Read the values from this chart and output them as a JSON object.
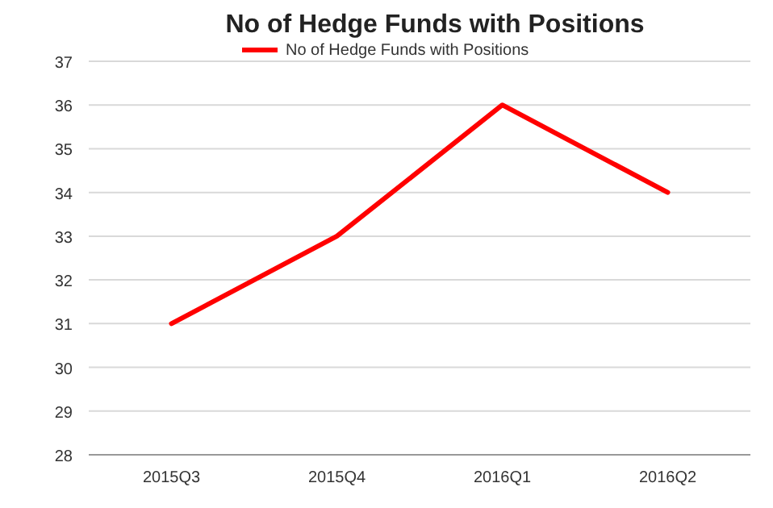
{
  "chart_data": {
    "type": "line",
    "title": "No of Hedge Funds with Positions",
    "categories": [
      "2015Q3",
      "2015Q4",
      "2016Q1",
      "2016Q2"
    ],
    "series": [
      {
        "name": "No of Hedge Funds with Positions",
        "color": "#ff0000",
        "values": [
          31,
          33,
          36,
          34
        ]
      }
    ],
    "ylim": [
      28,
      37
    ],
    "yticks": [
      28,
      29,
      30,
      31,
      32,
      33,
      34,
      35,
      36,
      37
    ],
    "grid": "y",
    "legend": "top",
    "marker": "none",
    "line_style": "solid"
  }
}
